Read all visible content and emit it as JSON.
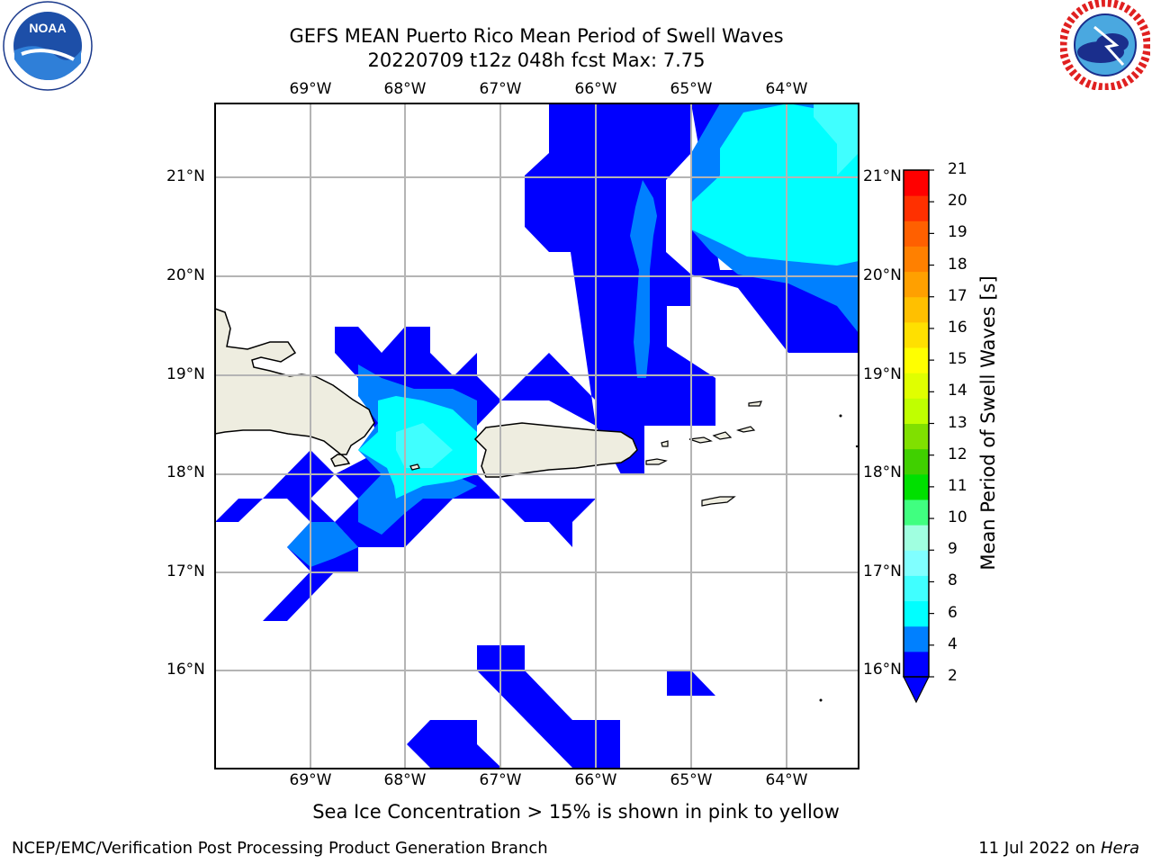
{
  "title": {
    "line1": "GEFS MEAN Puerto Rico Mean Period of Swell Waves",
    "line2": "20220709 t12z 048h fcst   Max: 7.75"
  },
  "logos": {
    "left": "noaa-logo",
    "right": "national-weather-service-logo"
  },
  "map": {
    "lon_labels": [
      "69°W",
      "68°W",
      "67°W",
      "66°W",
      "65°W",
      "64°W"
    ],
    "lat_labels": [
      "21°N",
      "20°N",
      "19°N",
      "18°N",
      "17°N",
      "16°N"
    ],
    "land_color": "#eeede0",
    "grid_color": "#b4b4b4"
  },
  "colorbar": {
    "label": "Mean Period of Swell Waves [s]",
    "ticks": [
      "21",
      "20",
      "19",
      "18",
      "17",
      "16",
      "15",
      "14",
      "13",
      "12",
      "11",
      "10",
      "9",
      "8",
      "6",
      "4",
      "2"
    ],
    "colors": [
      "#0000ff",
      "#0080ff",
      "#00ffff",
      "#40ffff",
      "#80ffff",
      "#a0ffe0",
      "#40ff80",
      "#00e000",
      "#40d000",
      "#80e000",
      "#c0ff00",
      "#e0ff00",
      "#ffff00",
      "#ffe000",
      "#ffc000",
      "#ffa000",
      "#ff8000",
      "#ff6000",
      "#ff3000",
      "#ff0000"
    ],
    "extend_color": "#0000ff"
  },
  "caption": "Sea Ice Concentration > 15% is shown in pink to yellow",
  "footer": {
    "left": "NCEP/EMC/Verification Post Processing Product Generation Branch",
    "right_date": "11 Jul 2022 on ",
    "right_host": "Hera"
  }
}
